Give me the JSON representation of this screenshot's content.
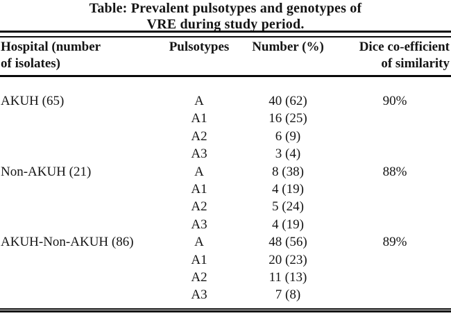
{
  "colors": {
    "background": "#ffffff",
    "ink": "#141414",
    "rule": "#0a0a0a"
  },
  "title": {
    "line1": "Table: Prevalent pulsotypes and genotypes of",
    "line2": "VRE during study period."
  },
  "header": {
    "hospital_line1": "Hospital (number",
    "hospital_line2": "of isolates)",
    "pulsotypes": "Pulsotypes",
    "number": "Number (%)",
    "dice_line1": "Dice co-efficient",
    "dice_line2": "of similarity"
  },
  "table": {
    "groups": [
      {
        "hospital": "AKUH (65)",
        "dice": "90%",
        "rows": [
          {
            "pulsotype": "A",
            "number": "40 (62)"
          },
          {
            "pulsotype": "A1",
            "number": "16 (25)"
          },
          {
            "pulsotype": "A2",
            "number": "6 (9)"
          },
          {
            "pulsotype": "A3",
            "number": "3 (4)"
          }
        ]
      },
      {
        "hospital": "Non-AKUH (21)",
        "dice": "88%",
        "rows": [
          {
            "pulsotype": "A",
            "number": "8 (38)"
          },
          {
            "pulsotype": "A1",
            "number": "4 (19)"
          },
          {
            "pulsotype": "A2",
            "number": "5 (24)"
          },
          {
            "pulsotype": "A3",
            "number": "4 (19)"
          }
        ]
      },
      {
        "hospital": "AKUH-Non-AKUH (86)",
        "dice": "89%",
        "rows": [
          {
            "pulsotype": "A",
            "number": "48 (56)"
          },
          {
            "pulsotype": "A1",
            "number": "20 (23)"
          },
          {
            "pulsotype": "A2",
            "number": "11 (13)"
          },
          {
            "pulsotype": "A3",
            "number": "7 (8)"
          }
        ]
      }
    ]
  },
  "chart_data": {
    "type": "table",
    "title": "Table: Prevalent pulsotypes and genotypes of VRE during study period.",
    "columns": [
      "Hospital (number of isolates)",
      "Pulsotypes",
      "Number (%)",
      "Dice co-efficient of similarity"
    ],
    "rows": [
      [
        "AKUH (65)",
        "A",
        "40 (62)",
        "90%"
      ],
      [
        "",
        "A1",
        "16 (25)",
        ""
      ],
      [
        "",
        "A2",
        "6 (9)",
        ""
      ],
      [
        "",
        "A3",
        "3 (4)",
        ""
      ],
      [
        "Non-AKUH (21)",
        "A",
        "8 (38)",
        "88%"
      ],
      [
        "",
        "A1",
        "4 (19)",
        ""
      ],
      [
        "",
        "A2",
        "5 (24)",
        ""
      ],
      [
        "",
        "A3",
        "4 (19)",
        ""
      ],
      [
        "AKUH-Non-AKUH (86)",
        "A",
        "48 (56)",
        "89%"
      ],
      [
        "",
        "A1",
        "20 (23)",
        ""
      ],
      [
        "",
        "A2",
        "11 (13)",
        ""
      ],
      [
        "",
        "A3",
        "7 (8)",
        ""
      ]
    ]
  }
}
